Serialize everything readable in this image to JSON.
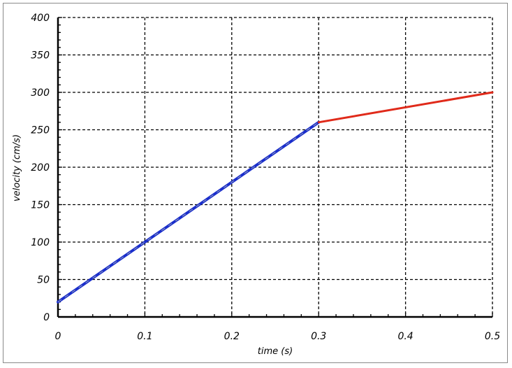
{
  "chart_data": {
    "type": "line",
    "title": "",
    "xlabel": "time (s)",
    "ylabel": "velocity (cm/s)",
    "xlim": [
      0,
      0.5
    ],
    "ylim": [
      0,
      400
    ],
    "x_ticks": [
      0,
      0.1,
      0.2,
      0.3,
      0.4,
      0.5
    ],
    "x_tick_labels": [
      "0",
      "0.1",
      "0.2",
      "0.3",
      "0.4",
      "0.5"
    ],
    "y_ticks": [
      0,
      50,
      100,
      150,
      200,
      250,
      300,
      350,
      400
    ],
    "y_tick_labels": [
      "0",
      "50",
      "100",
      "150",
      "200",
      "250",
      "300",
      "350",
      "400"
    ],
    "grid": true,
    "grid_style": "dashed",
    "legend": false,
    "series": [
      {
        "x": [
          0,
          0.3
        ],
        "y": [
          20,
          260
        ],
        "color": "#1a2ecc"
      },
      {
        "x": [
          0.3,
          0.5
        ],
        "y": [
          260,
          300
        ],
        "color": "#e02a1a"
      }
    ]
  }
}
